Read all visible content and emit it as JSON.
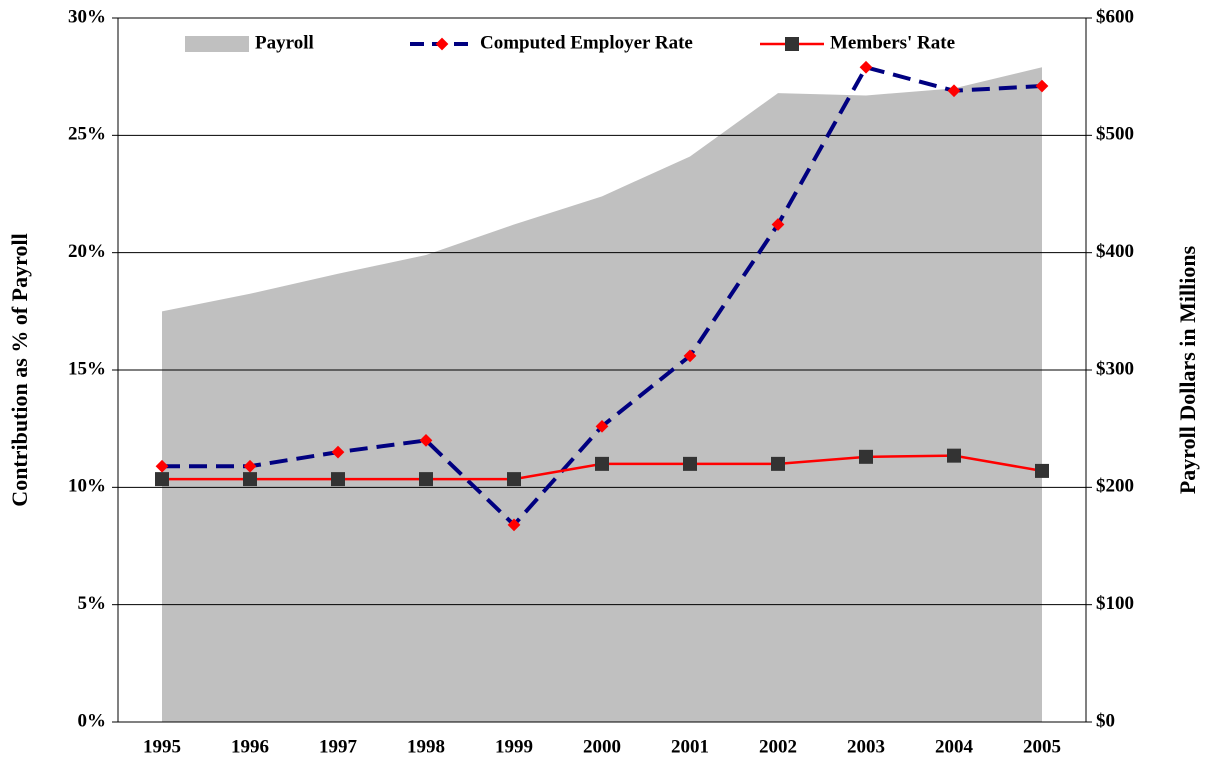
{
  "chart_data": {
    "type": "line",
    "y_label": "Contribution as % of Payroll",
    "y2_label": "Payroll Dollars in Millions",
    "categories": [
      "1995",
      "1996",
      "1997",
      "1998",
      "1999",
      "2000",
      "2001",
      "2002",
      "2003",
      "2004",
      "2005"
    ],
    "series": [
      {
        "name": "Payroll",
        "color": "#c0c0c0",
        "axis": "y2",
        "kind": "area",
        "values": [
          350,
          365,
          382,
          398,
          424,
          448,
          482,
          536,
          534,
          540,
          558
        ]
      },
      {
        "name": "Computed Employer Rate",
        "color": "#000080",
        "marker_color": "#ff0000",
        "kind": "dashed",
        "values": [
          10.9,
          10.9,
          11.5,
          12.0,
          8.4,
          12.6,
          15.6,
          21.2,
          27.9,
          26.9,
          27.1
        ]
      },
      {
        "name": "Members' Rate",
        "color": "#ff0000",
        "marker_color": "#333333",
        "kind": "solid",
        "values": [
          10.35,
          10.35,
          10.35,
          10.35,
          10.35,
          11.0,
          11.0,
          11.0,
          11.3,
          11.35,
          10.7
        ]
      }
    ],
    "ylim": [
      0,
      30
    ],
    "yticks": [
      {
        "value": 0,
        "label": "0%"
      },
      {
        "value": 5,
        "label": "5%"
      },
      {
        "value": 10,
        "label": "10%"
      },
      {
        "value": 15,
        "label": "15%"
      },
      {
        "value": 20,
        "label": "20%"
      },
      {
        "value": 25,
        "label": "25%"
      },
      {
        "value": 30,
        "label": "30%"
      }
    ],
    "y2lim": [
      0,
      600
    ],
    "y2ticks": [
      {
        "value": 0,
        "label": "$0"
      },
      {
        "value": 100,
        "label": "$100"
      },
      {
        "value": 200,
        "label": "$200"
      },
      {
        "value": 300,
        "label": "$300"
      },
      {
        "value": 400,
        "label": "$400"
      },
      {
        "value": 500,
        "label": "$500"
      },
      {
        "value": 600,
        "label": "$600"
      }
    ],
    "grid": true
  }
}
